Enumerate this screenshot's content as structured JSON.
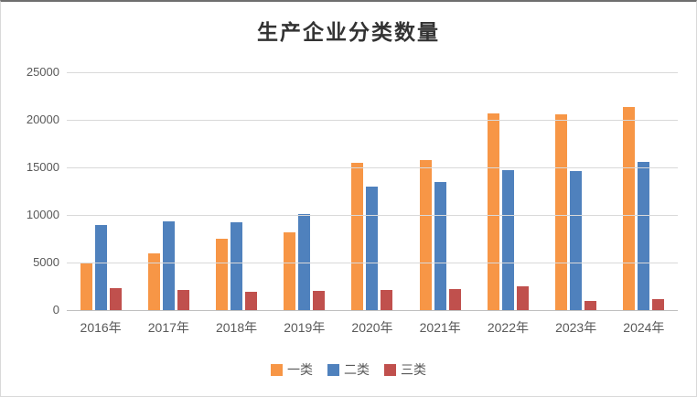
{
  "chart_data": {
    "type": "bar",
    "title": "生产企业分类数量",
    "categories": [
      "2016年",
      "2017年",
      "2018年",
      "2019年",
      "2020年",
      "2021年",
      "2022年",
      "2023年",
      "2024年"
    ],
    "series": [
      {
        "name": "一类",
        "color": "#F79646",
        "values": [
          5000,
          6000,
          7500,
          8200,
          15500,
          15800,
          20650,
          20600,
          21350
        ]
      },
      {
        "name": "二类",
        "color": "#4F81BD",
        "values": [
          8900,
          9300,
          9200,
          10050,
          13000,
          13500,
          14700,
          14650,
          15600
        ]
      },
      {
        "name": "三类",
        "color": "#C0504D",
        "values": [
          2300,
          2100,
          1900,
          2000,
          2150,
          2250,
          2500,
          1000,
          1200
        ]
      }
    ],
    "ylim": [
      0,
      25000
    ],
    "ytick_interval": 5000,
    "yticks": [
      "25000",
      "20000",
      "15000",
      "10000",
      "5000",
      "0"
    ],
    "grid": true,
    "legend_position": "bottom",
    "colors": {
      "gridline": "#d9d9d9",
      "axis_line": "#bfbfbf",
      "axis_text": "#595959",
      "title_text": "#333333"
    }
  }
}
